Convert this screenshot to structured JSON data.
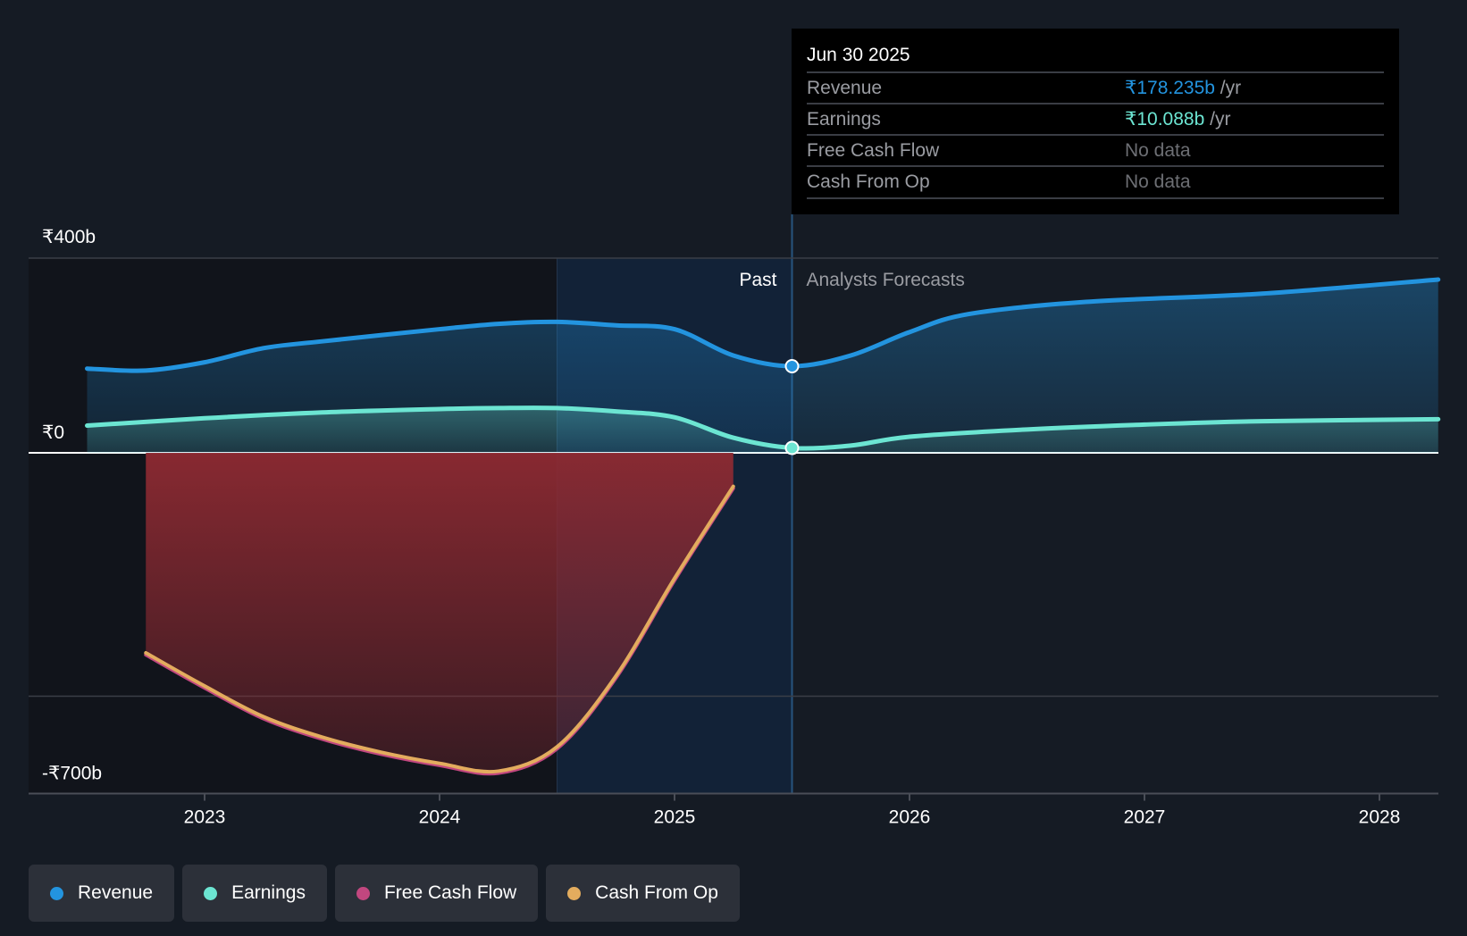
{
  "chart_data": {
    "type": "area",
    "currency": "₹",
    "y_ticks": [
      {
        "value": 400,
        "label": "₹400b"
      },
      {
        "value": 0,
        "label": "₹0"
      },
      {
        "value": -700,
        "label": "-₹700b"
      }
    ],
    "ylim": [
      -700,
      400
    ],
    "xlim": [
      2022.4,
      2028.25
    ],
    "x_ticks": [
      {
        "value": 2023,
        "label": "2023"
      },
      {
        "value": 2024,
        "label": "2024"
      },
      {
        "value": 2025,
        "label": "2025"
      },
      {
        "value": 2026,
        "label": "2026"
      },
      {
        "value": 2027,
        "label": "2027"
      },
      {
        "value": 2028,
        "label": "2028"
      }
    ],
    "past_label": "Past",
    "forecast_label": "Analysts Forecasts",
    "past_boundary": 2025.5,
    "highlight_start": 2024.5,
    "series": [
      {
        "name": "Revenue",
        "color": "#2394df",
        "points": [
          [
            2022.5,
            173
          ],
          [
            2022.75,
            169
          ],
          [
            2023,
            186
          ],
          [
            2023.25,
            215
          ],
          [
            2023.5,
            229
          ],
          [
            2024,
            254
          ],
          [
            2024.25,
            265
          ],
          [
            2024.5,
            269
          ],
          [
            2024.75,
            262
          ],
          [
            2025,
            254
          ],
          [
            2025.25,
            200
          ],
          [
            2025.5,
            178
          ],
          [
            2025.75,
            200
          ],
          [
            2026,
            248
          ],
          [
            2026.25,
            285
          ],
          [
            2026.75,
            310
          ],
          [
            2027.5,
            327
          ],
          [
            2028.25,
            356
          ]
        ]
      },
      {
        "name": "Earnings",
        "color": "#6ce5d2",
        "points": [
          [
            2022.5,
            56
          ],
          [
            2023,
            71
          ],
          [
            2023.5,
            83
          ],
          [
            2024,
            90
          ],
          [
            2024.25,
            92
          ],
          [
            2024.5,
            92
          ],
          [
            2024.75,
            85
          ],
          [
            2025,
            73
          ],
          [
            2025.25,
            31
          ],
          [
            2025.5,
            10
          ],
          [
            2025.75,
            15
          ],
          [
            2026,
            33
          ],
          [
            2026.5,
            48
          ],
          [
            2027,
            58
          ],
          [
            2027.5,
            65
          ],
          [
            2028.25,
            69
          ]
        ]
      },
      {
        "name": "Free Cash Flow",
        "color": "#c2477f",
        "points": [
          [
            2022.75,
            -415
          ],
          [
            2023,
            -483
          ],
          [
            2023.25,
            -546
          ],
          [
            2023.5,
            -588
          ],
          [
            2023.75,
            -619
          ],
          [
            2024,
            -642
          ],
          [
            2024.25,
            -658
          ],
          [
            2024.5,
            -608
          ],
          [
            2024.75,
            -463
          ],
          [
            2025,
            -262
          ],
          [
            2025.25,
            -73
          ]
        ]
      },
      {
        "name": "Cash From Op",
        "color": "#e3ac5e",
        "points": [
          [
            2022.75,
            -411
          ],
          [
            2023,
            -479
          ],
          [
            2023.25,
            -542
          ],
          [
            2023.5,
            -584
          ],
          [
            2023.75,
            -615
          ],
          [
            2024,
            -638
          ],
          [
            2024.25,
            -654
          ],
          [
            2024.5,
            -604
          ],
          [
            2024.75,
            -459
          ],
          [
            2025,
            -258
          ],
          [
            2025.25,
            -69
          ]
        ]
      }
    ]
  },
  "tooltip": {
    "date": "Jun 30 2025",
    "rows": [
      {
        "label": "Revenue",
        "value": "₹178.235b",
        "unit": " /yr",
        "color": "#2394df"
      },
      {
        "label": "Earnings",
        "value": "₹10.088b",
        "unit": " /yr",
        "color": "#6ce5d2"
      },
      {
        "label": "Free Cash Flow",
        "value": "No data",
        "unit": "",
        "color": "#6d6f74"
      },
      {
        "label": "Cash From Op",
        "value": "No data",
        "unit": "",
        "color": "#6d6f74"
      }
    ]
  },
  "legend": [
    {
      "label": "Revenue",
      "color": "#2394df"
    },
    {
      "label": "Earnings",
      "color": "#6ce5d2"
    },
    {
      "label": "Free Cash Flow",
      "color": "#c2477f"
    },
    {
      "label": "Cash From Op",
      "color": "#e3ac5e"
    }
  ]
}
